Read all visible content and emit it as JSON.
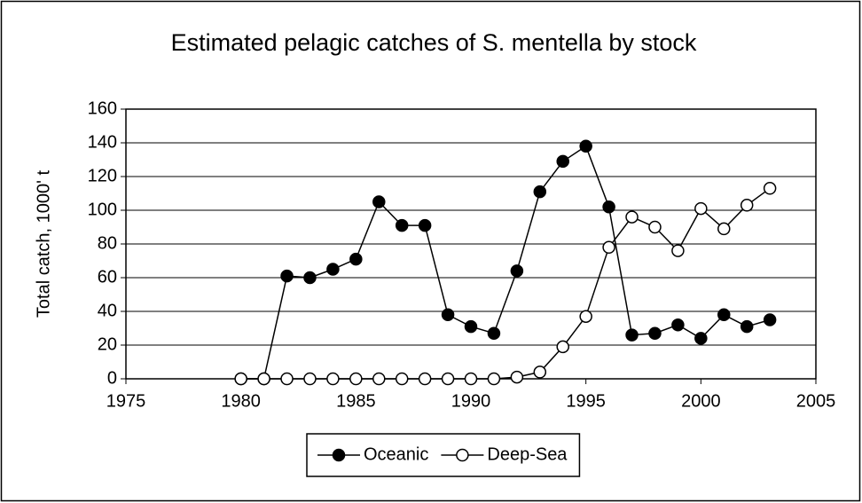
{
  "chart_data": {
    "type": "line",
    "title": "Estimated pelagic catches of S. mentella by stock",
    "y_label": "Total catch, 1000' t",
    "x": [
      1980,
      1981,
      1982,
      1983,
      1984,
      1985,
      1986,
      1987,
      1988,
      1989,
      1990,
      1991,
      1992,
      1993,
      1994,
      1995,
      1996,
      1997,
      1998,
      1999,
      2000,
      2001,
      2002,
      2003
    ],
    "series": [
      {
        "name": "Oceanic",
        "color": "#000000",
        "marker": "filled",
        "values": [
          0,
          0,
          61,
          60,
          65,
          71,
          105,
          91,
          91,
          38,
          31,
          27,
          64,
          111,
          129,
          138,
          102,
          26,
          27,
          32,
          24,
          38,
          31,
          35
        ]
      },
      {
        "name": "Deep-Sea",
        "color": "#000000",
        "marker": "open",
        "values": [
          0,
          0,
          0,
          0,
          0,
          0,
          0,
          0,
          0,
          0,
          0,
          0,
          1,
          4,
          19,
          37,
          78,
          96,
          90,
          76,
          101,
          89,
          103,
          113
        ]
      }
    ],
    "xlim": [
      1975,
      2005
    ],
    "xticks": [
      1975,
      1980,
      1985,
      1990,
      1995,
      2000,
      2005
    ],
    "ylim": [
      0,
      160
    ],
    "yticks": [
      0,
      20,
      40,
      60,
      80,
      100,
      120,
      140,
      160
    ],
    "grid": true,
    "legend": "bottom"
  }
}
